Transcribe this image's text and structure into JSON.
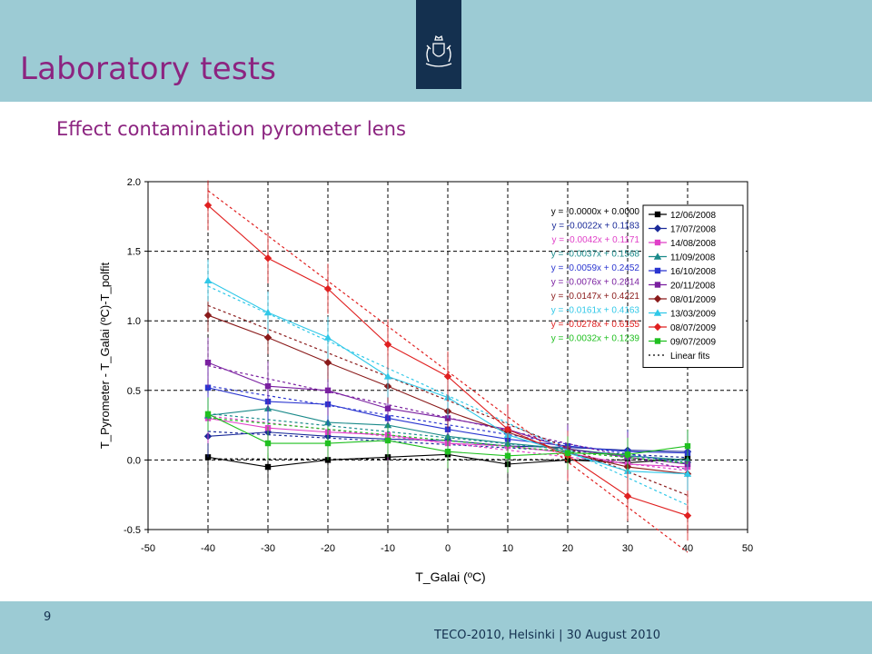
{
  "slide": {
    "title": "Laboratory tests",
    "subtitle": "Effect contamination pyrometer lens",
    "page_number": "9",
    "footer": "TECO-2010, Helsinki  | 30 August 2010",
    "accent_color": "#8c2480",
    "band_color": "#9ccbd4",
    "logo_color": "#14304f"
  },
  "chart_data": {
    "type": "line",
    "xlabel": "T_Galai (ºC)",
    "ylabel": "T_Pyrometer - T_Galai (ºC)-T_polfit",
    "xlim": [
      -50,
      50
    ],
    "ylim": [
      -0.5,
      2.0
    ],
    "x_ticks": [
      -50,
      -40,
      -30,
      -20,
      -10,
      0,
      10,
      20,
      30,
      40,
      50
    ],
    "y_ticks": [
      -0.5,
      0.0,
      0.5,
      1.0,
      1.5,
      2.0
    ],
    "grid": true,
    "legend_position": "top-right",
    "x": [
      -40,
      -30,
      -20,
      -10,
      0,
      10,
      20,
      30,
      40
    ],
    "series": [
      {
        "name": "12/06/2008",
        "color": "#000000",
        "marker": "square",
        "equation": "y = -0.0000x + 0.0000",
        "values": [
          0.02,
          -0.05,
          0.0,
          0.02,
          0.04,
          -0.03,
          0.0,
          -0.02,
          0.01
        ]
      },
      {
        "name": "17/07/2008",
        "color": "#1a2a99",
        "marker": "diamond",
        "equation": "y = -0.0022x + 0.1183",
        "values": [
          0.17,
          0.2,
          0.17,
          0.15,
          0.14,
          0.1,
          0.09,
          0.07,
          0.06
        ]
      },
      {
        "name": "14/08/2008",
        "color": "#e040c8",
        "marker": "square",
        "equation": "y = -0.0042x + 0.1171",
        "values": [
          0.3,
          0.23,
          0.2,
          0.18,
          0.12,
          0.1,
          0.05,
          -0.03,
          -0.05
        ]
      },
      {
        "name": "11/09/2008",
        "color": "#1a8a8a",
        "marker": "triangle",
        "equation": "y = -0.0037x + 0.1568",
        "values": [
          0.32,
          0.37,
          0.27,
          0.25,
          0.17,
          0.12,
          0.08,
          0.03,
          0.0
        ]
      },
      {
        "name": "16/10/2008",
        "color": "#2a35d0",
        "marker": "square",
        "equation": "y = -0.0059x + 0.2452",
        "values": [
          0.52,
          0.42,
          0.4,
          0.3,
          0.22,
          0.15,
          0.1,
          0.06,
          0.05
        ]
      },
      {
        "name": "20/11/2008",
        "color": "#7a20a0",
        "marker": "square",
        "equation": "y = -0.0076x + 0.2814",
        "values": [
          0.7,
          0.53,
          0.5,
          0.37,
          0.3,
          0.22,
          0.08,
          0.02,
          -0.03
        ]
      },
      {
        "name": "08/01/2009",
        "color": "#8a1a1a",
        "marker": "diamond",
        "equation": "y = -0.0147x + 0.4221",
        "values": [
          1.04,
          0.88,
          0.7,
          0.53,
          0.35,
          0.2,
          0.05,
          -0.05,
          -0.1
        ]
      },
      {
        "name": "13/03/2009",
        "color": "#30c8e8",
        "marker": "triangle",
        "equation": "y = -0.0161x + 0.4163",
        "values": [
          1.29,
          1.06,
          0.88,
          0.6,
          0.45,
          0.18,
          0.05,
          -0.08,
          -0.1
        ]
      },
      {
        "name": "08/07/2009",
        "color": "#e02020",
        "marker": "diamond",
        "equation": "y = -0.0278x + 0.6155",
        "values": [
          1.83,
          1.45,
          1.23,
          0.83,
          0.6,
          0.22,
          0.03,
          -0.26,
          -0.4
        ]
      },
      {
        "name": "09/07/2009",
        "color": "#20c020",
        "marker": "square",
        "equation": "y = -0.0032x + 0.1239",
        "values": [
          0.33,
          0.12,
          0.12,
          0.14,
          0.06,
          0.03,
          0.05,
          0.04,
          0.1
        ]
      }
    ],
    "linear_fits_label": "Linear fits"
  }
}
